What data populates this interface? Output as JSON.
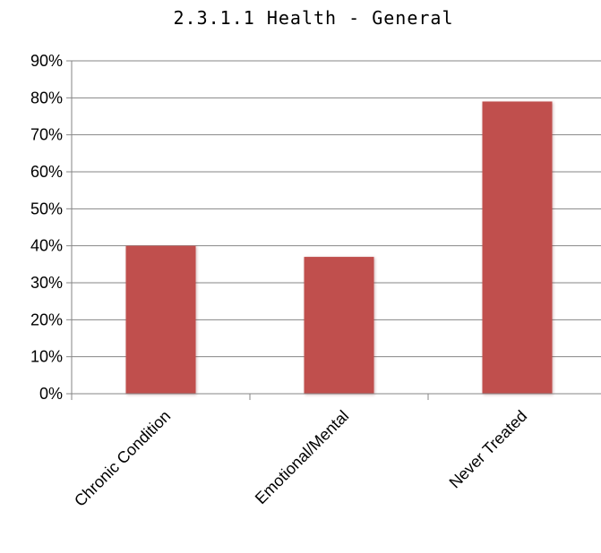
{
  "chart_data": {
    "type": "bar",
    "title": "2.3.1.1 Health - General",
    "categories": [
      "Chronic Condition",
      "Emotional/Mental",
      "Never Treated"
    ],
    "series": [
      {
        "values": [
          0.4,
          0.37,
          0.79
        ]
      }
    ],
    "ylim": [
      0,
      0.9
    ],
    "yticks": [
      "0%",
      "10%",
      "20%",
      "30%",
      "40%",
      "50%",
      "60%",
      "70%",
      "80%",
      "90%"
    ],
    "xlabel": "",
    "ylabel": "",
    "grid": true,
    "bar_color": "#c0504d"
  }
}
